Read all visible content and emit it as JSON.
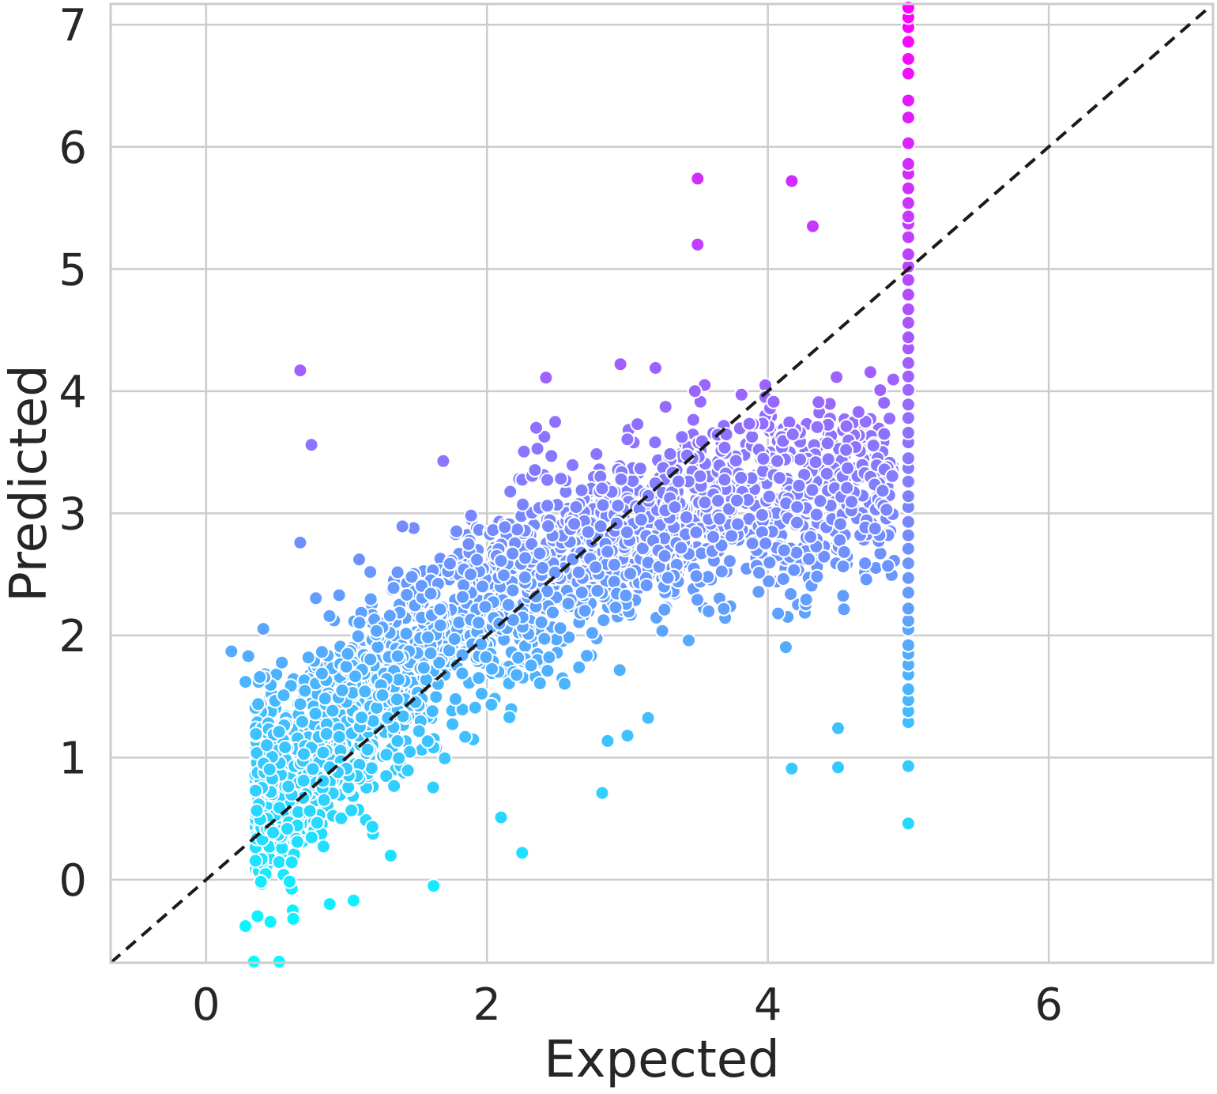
{
  "chart_data": {
    "type": "scatter",
    "xlabel": "Expected",
    "ylabel": "Predicted",
    "xlim": [
      -0.68,
      7.17
    ],
    "ylim": [
      -0.68,
      7.17
    ],
    "xticks": [
      0,
      2,
      4,
      6
    ],
    "yticks": [
      0,
      1,
      2,
      3,
      4,
      5,
      6,
      7
    ],
    "grid": true,
    "reference_line": {
      "style": "dashed",
      "color": "#1a1a1a",
      "slope": 1,
      "intercept": 0
    },
    "colormap": {
      "name": "cool",
      "low": "#00ffff",
      "high": "#ff00ff",
      "mapped_to": "Predicted"
    },
    "outliers": [
      [
        0.67,
        4.17
      ],
      [
        0.75,
        3.56
      ],
      [
        0.67,
        2.76
      ],
      [
        3.5,
        5.74
      ],
      [
        3.5,
        5.2
      ],
      [
        4.17,
        5.72
      ],
      [
        4.32,
        5.35
      ],
      [
        0.28,
        1.62
      ],
      [
        0.18,
        1.87
      ],
      [
        0.3,
        1.83
      ],
      [
        0.28,
        -0.38
      ],
      [
        0.34,
        -0.67
      ],
      [
        0.52,
        -0.67
      ],
      [
        0.62,
        -0.32
      ],
      [
        0.88,
        -0.2
      ],
      [
        1.05,
        -0.17
      ],
      [
        2.25,
        0.22
      ],
      [
        2.1,
        0.51
      ],
      [
        1.62,
        -0.05
      ],
      [
        2.82,
        0.71
      ],
      [
        3.0,
        1.18
      ],
      [
        4.17,
        0.91
      ],
      [
        4.5,
        0.92
      ],
      [
        4.5,
        1.24
      ],
      [
        2.42,
        4.11
      ],
      [
        2.95,
        4.22
      ],
      [
        3.2,
        4.19
      ],
      [
        3.55,
        4.05
      ],
      [
        3.48,
        4.0
      ],
      [
        2.35,
        3.7
      ]
    ],
    "capped_series": {
      "x": 5.0,
      "y": [
        0.46,
        0.93,
        1.29,
        1.38,
        1.47,
        1.56,
        1.68,
        1.76,
        1.85,
        1.92,
        2.05,
        2.12,
        2.22,
        2.35,
        2.47,
        2.59,
        2.71,
        2.82,
        2.93,
        3.05,
        3.14,
        3.26,
        3.37,
        3.45,
        3.58,
        3.66,
        3.78,
        3.89,
        4.01,
        4.12,
        4.23,
        4.35,
        4.44,
        4.56,
        4.67,
        4.79,
        4.91,
        5.02,
        5.12,
        5.26,
        5.37,
        5.43,
        5.54,
        5.66,
        5.78,
        5.86,
        6.03,
        6.24,
        6.38,
        6.6,
        6.72,
        6.86,
        6.98,
        7.06,
        7.14
      ]
    },
    "main_cloud": {
      "description_source": "bulk of points trending upward",
      "x_range": [
        0.35,
        4.9
      ],
      "trend_points": [
        [
          0.5,
          0.75
        ],
        [
          1.0,
          1.35
        ],
        [
          1.5,
          1.85
        ],
        [
          2.0,
          2.25
        ],
        [
          2.5,
          2.55
        ],
        [
          3.0,
          2.8
        ],
        [
          3.5,
          3.0
        ],
        [
          4.0,
          3.1
        ],
        [
          4.5,
          3.2
        ],
        [
          4.85,
          3.3
        ]
      ],
      "spread_sd": 0.38,
      "n_points": 2400
    }
  }
}
